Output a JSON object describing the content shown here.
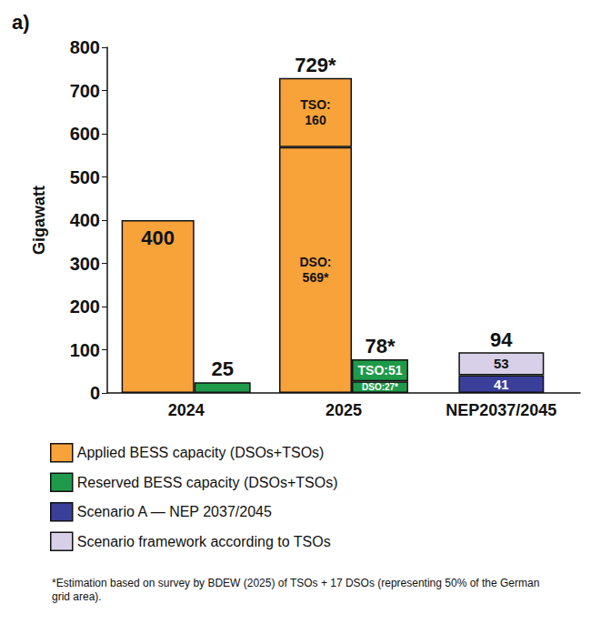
{
  "chart_data": {
    "type": "bar",
    "panel_label": "a)",
    "y_label": "Gigawatt",
    "categories": [
      "2024",
      "2025",
      "NEP2037/2045"
    ],
    "ylim": [
      0,
      800
    ],
    "yticks": [
      0,
      100,
      200,
      300,
      400,
      500,
      600,
      700,
      800
    ],
    "grid": false,
    "stacked": true,
    "data_labels": true,
    "legend": "bottom",
    "series": [
      {
        "name": "Applied BESS capacity (DSOs+TSOs)",
        "color": "#F8A33A",
        "values": [
          [
            400
          ],
          [
            569,
            160
          ],
          null
        ],
        "value_labels": [
          [
            "400"
          ],
          [
            "DSO: 569*",
            "TSO: 160"
          ],
          null
        ]
      },
      {
        "name": "Reserved BESS capacity (DSOs+TSOs)",
        "color": "#1F9A4A",
        "values": [
          [
            25
          ],
          [
            27,
            51
          ],
          null
        ],
        "value_labels": [
          [
            "25"
          ],
          [
            "DSO:27*",
            "TSO:51"
          ],
          null
        ]
      },
      {
        "name": "Scenario A — NEP 2037/2045",
        "color": "#3A3F9A",
        "values": [
          null,
          null,
          41
        ]
      },
      {
        "name": "Scenario framework according to TSOs",
        "color": "#D8D0E8",
        "values": [
          null,
          null,
          53
        ]
      }
    ],
    "totals": [
      {
        "category": "2025",
        "series": "Applied BESS capacity (DSOs+TSOs)",
        "value": 729,
        "label": "729*"
      },
      {
        "category": "2025",
        "series": "Reserved BESS capacity (DSOs+TSOs)",
        "value": 78,
        "label": "78*"
      },
      {
        "category": "NEP2037/2045",
        "series": "Scenario framework according to TSOs",
        "value": 94,
        "label": "94"
      }
    ],
    "footnote": "*Estimation based on survey by BDEW (2025) of TSOs + 17 DSOs (representing 50% of the German grid area)."
  }
}
